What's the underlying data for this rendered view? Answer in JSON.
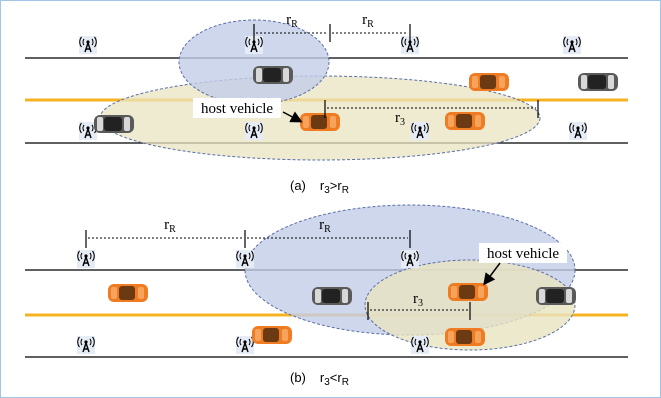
{
  "panels": [
    {
      "r_labels": [
        {
          "base": "r",
          "sub": "R"
        },
        {
          "base": "r",
          "sub": "R"
        }
      ],
      "r3_label": {
        "base": "r",
        "sub": "3"
      },
      "host_label": "host vehicle",
      "caption": {
        "tag": "(a)",
        "lhs": {
          "base": "r",
          "sub": "3"
        },
        "op": ">",
        "rhs": {
          "base": "r",
          "sub": "R"
        }
      }
    },
    {
      "r_labels": [
        {
          "base": "r",
          "sub": "R"
        },
        {
          "base": "r",
          "sub": "R"
        }
      ],
      "r3_label": {
        "base": "r",
        "sub": "3"
      },
      "host_label": "host vehicle",
      "caption": {
        "tag": "(b)",
        "lhs": {
          "base": "r",
          "sub": "3"
        },
        "op": "<",
        "rhs": {
          "base": "r",
          "sub": "R"
        }
      }
    }
  ]
}
